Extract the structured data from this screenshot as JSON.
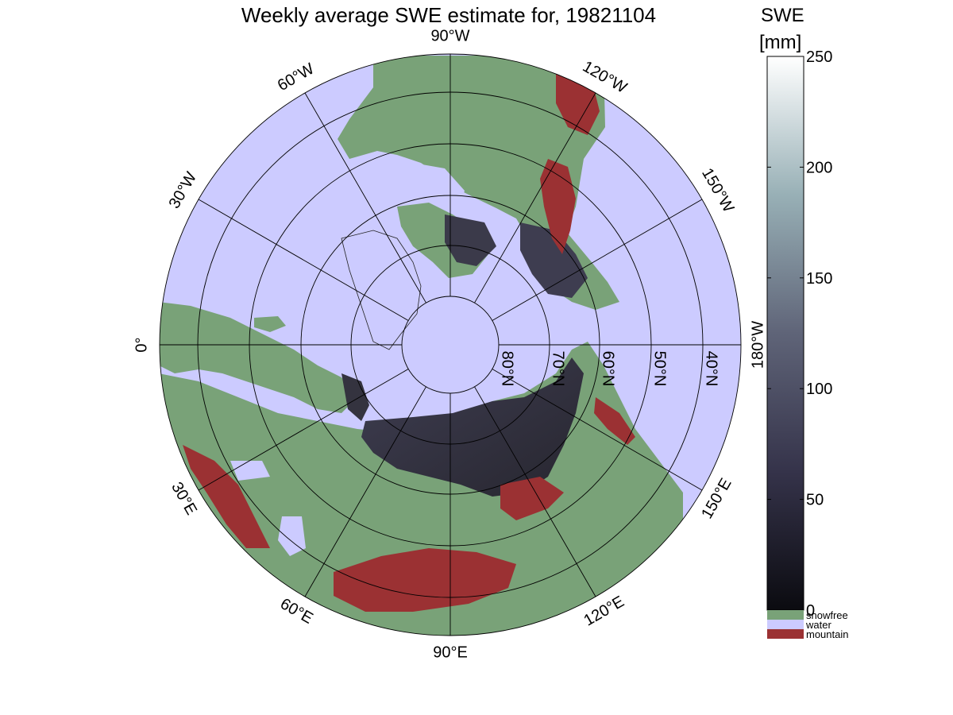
{
  "map": {
    "title": "Weekly average SWE estimate for, 19821104",
    "longitude_labels": [
      {
        "text": "90°W",
        "lon_deg": -90
      },
      {
        "text": "120°W",
        "lon_deg": -120
      },
      {
        "text": "150°W",
        "lon_deg": -150
      },
      {
        "text": "180°W",
        "lon_deg": 180
      },
      {
        "text": "150°E",
        "lon_deg": 150
      },
      {
        "text": "120°E",
        "lon_deg": 120
      },
      {
        "text": "90°E",
        "lon_deg": 90
      },
      {
        "text": "60°E",
        "lon_deg": 60
      },
      {
        "text": "30°E",
        "lon_deg": 30
      },
      {
        "text": "0°",
        "lon_deg": 0
      },
      {
        "text": "30°W",
        "lon_deg": -30
      },
      {
        "text": "60°W",
        "lon_deg": -60
      }
    ],
    "latitude_labels": [
      {
        "text": "80°N",
        "lat_deg": 80
      },
      {
        "text": "70°N",
        "lat_deg": 70
      },
      {
        "text": "60°N",
        "lat_deg": 60
      },
      {
        "text": "50°N",
        "lat_deg": 50
      },
      {
        "text": "40°N",
        "lat_deg": 40
      }
    ],
    "colors": {
      "water": "#cccbff",
      "snowfree": "#79a278",
      "mountain": "#9b3133",
      "swe_low": "#0d0d12",
      "swe_high": "#ffffff"
    }
  },
  "colorbar": {
    "title_line1": "SWE",
    "title_line2": "[mm]",
    "range": [
      0,
      250
    ],
    "tick_labels": [
      "250",
      "200",
      "150",
      "100",
      "50",
      "0"
    ],
    "categories": [
      {
        "label": "snowfree",
        "color": "#79a278"
      },
      {
        "label": "water",
        "color": "#cccbff"
      },
      {
        "label": "mountain",
        "color": "#9b3133"
      }
    ]
  }
}
